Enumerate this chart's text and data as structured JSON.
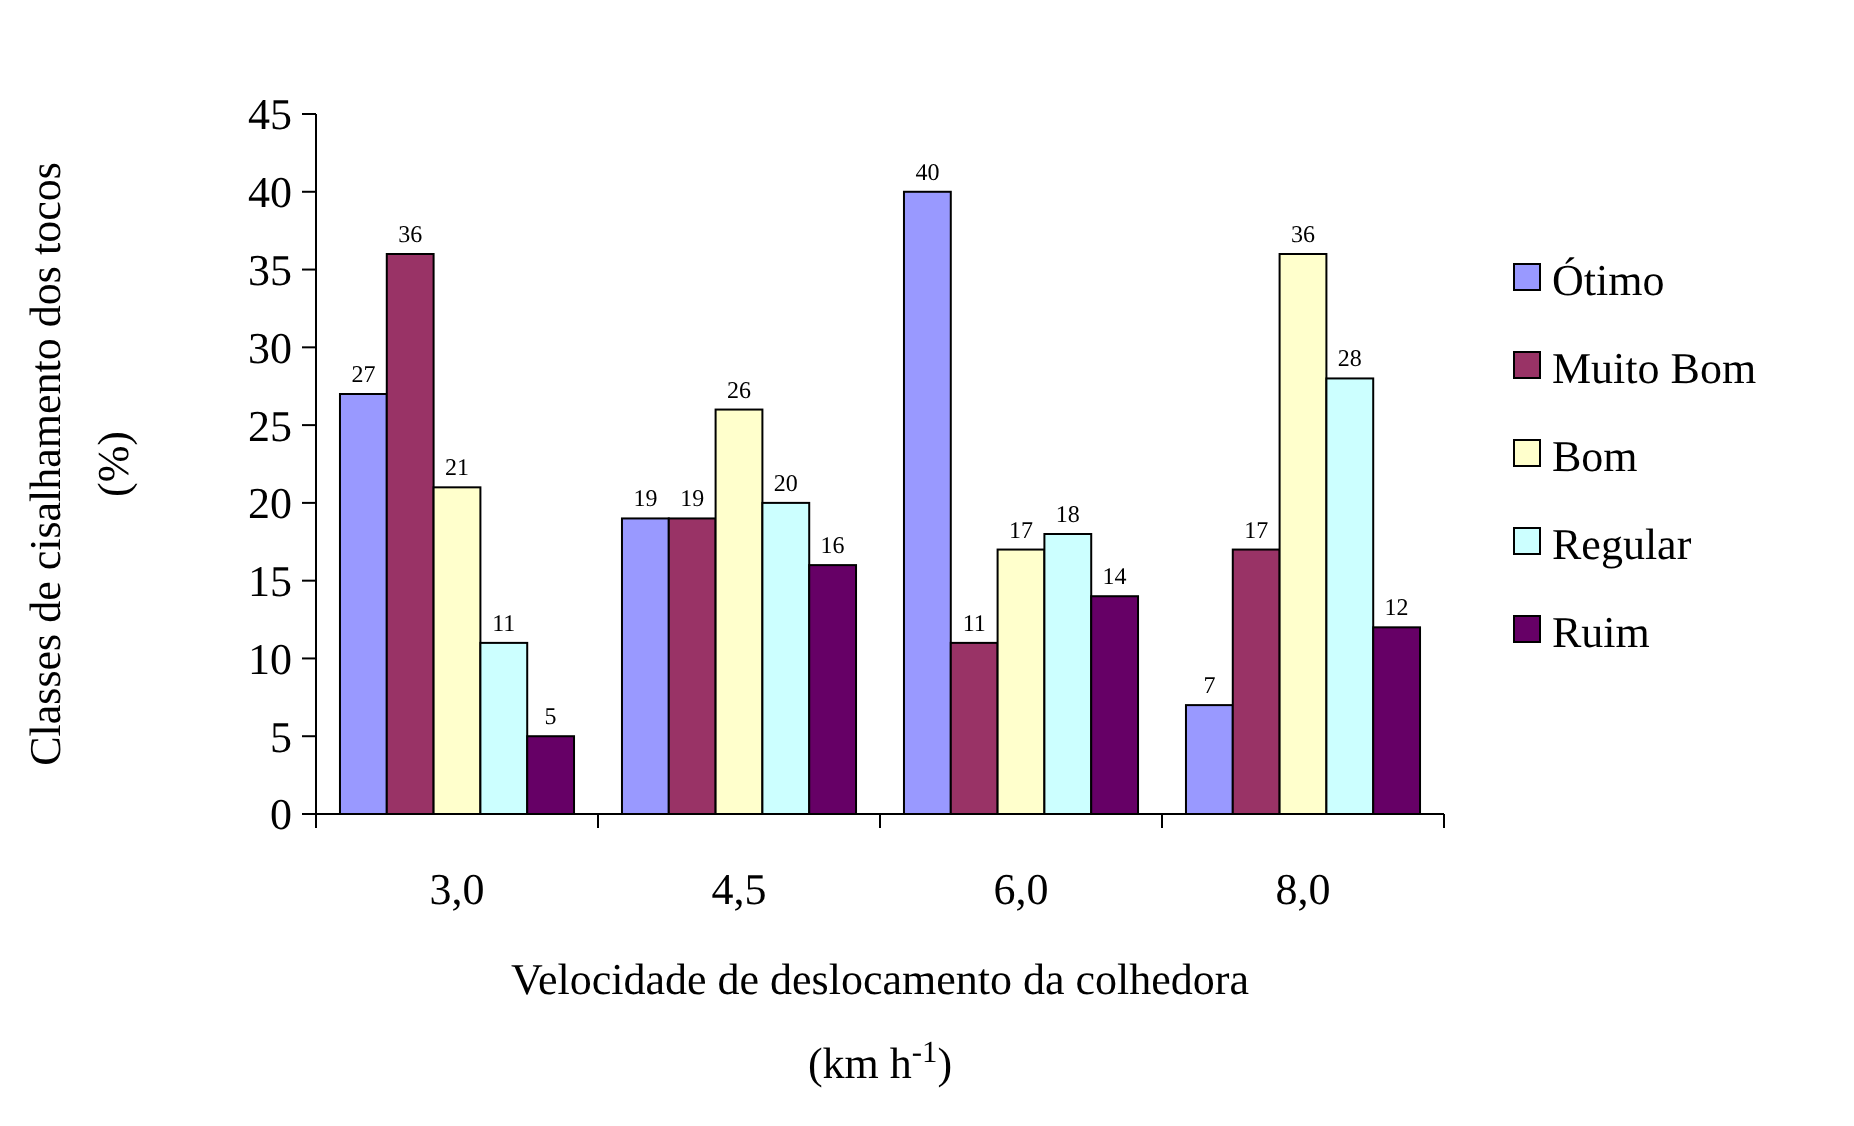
{
  "chart_data": {
    "type": "bar",
    "xlabel": "Velocidade de deslocamento da colhedora (km h$^{-1}$)",
    "ylabel": "Classes de cisalhamento dos tocos (%)",
    "categories": [
      "3,0",
      "4,5",
      "6,0",
      "8,0"
    ],
    "ylim": [
      0,
      45
    ],
    "yticks": [
      0,
      5,
      10,
      15,
      20,
      25,
      30,
      35,
      40,
      45
    ],
    "grid": false,
    "legend": "right",
    "data_labels": true,
    "series": [
      {
        "name": "Ótimo",
        "color": "#9999ff",
        "values": [
          27,
          19,
          40,
          7
        ]
      },
      {
        "name": "Muito Bom",
        "color": "#993366",
        "values": [
          36,
          19,
          11,
          17
        ]
      },
      {
        "name": "Bom",
        "color": "#ffffcc",
        "values": [
          21,
          26,
          17,
          36
        ]
      },
      {
        "name": "Regular",
        "color": "#ccffff",
        "values": [
          11,
          20,
          18,
          28
        ]
      },
      {
        "name": "Ruim",
        "color": "#660066",
        "values": [
          5,
          16,
          14,
          12
        ]
      }
    ]
  }
}
